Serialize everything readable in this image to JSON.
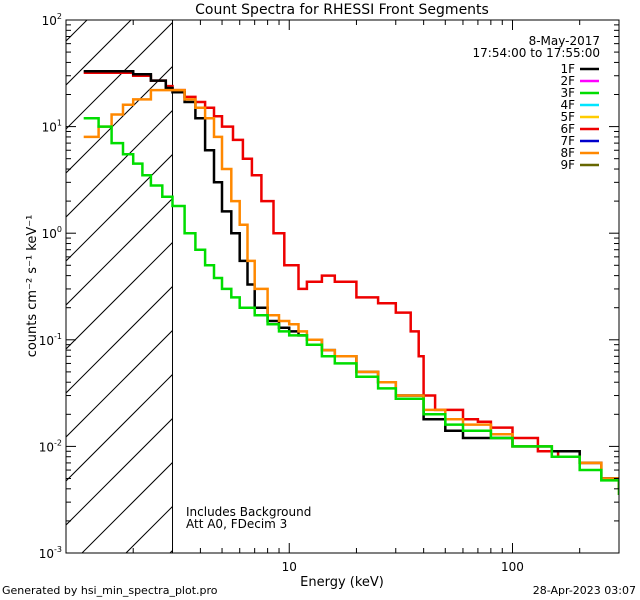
{
  "chart_data": {
    "type": "line",
    "title": "Count Spectra for RHESSI Front Segments",
    "xlabel": "Energy (keV)",
    "ylabel": "counts cm⁻² s⁻¹ keV⁻¹",
    "xscale": "log",
    "yscale": "log",
    "xlim": [
      1,
      300
    ],
    "ylim": [
      0.001,
      100
    ],
    "x_ticks": [
      {
        "value": 10,
        "label": "10"
      },
      {
        "value": 100,
        "label": "100"
      }
    ],
    "y_ticks": [
      {
        "value": 0.001,
        "base": "10",
        "exp": "-3"
      },
      {
        "value": 0.01,
        "base": "10",
        "exp": "-2"
      },
      {
        "value": 0.1,
        "base": "10",
        "exp": "-1"
      },
      {
        "value": 1,
        "base": "10",
        "exp": "0"
      },
      {
        "value": 10,
        "base": "10",
        "exp": "1"
      },
      {
        "value": 100,
        "base": "10",
        "exp": "2"
      }
    ],
    "excluded_region": {
      "x_max": 3.0,
      "style": "hatched"
    },
    "date": "8-May-2017",
    "time_range": "17:54:00 to 17:55:00",
    "annotations": [
      "Includes Background",
      "Att A0, FDecim 3"
    ],
    "legend": [
      {
        "name": "1F",
        "color": "#000000"
      },
      {
        "name": "2F",
        "color": "#ff00ff"
      },
      {
        "name": "3F",
        "color": "#00dd00"
      },
      {
        "name": "4F",
        "color": "#00e5ff"
      },
      {
        "name": "5F",
        "color": "#ffcc00"
      },
      {
        "name": "6F",
        "color": "#ee0000"
      },
      {
        "name": "7F",
        "color": "#0000cc"
      },
      {
        "name": "8F",
        "color": "#ff8800"
      },
      {
        "name": "9F",
        "color": "#666600"
      }
    ],
    "series": [
      {
        "name": "6F",
        "color": "#ee0000",
        "x": [
          1.2,
          1.6,
          2.0,
          2.4,
          2.8,
          3.0,
          3.4,
          3.8,
          4.2,
          4.6,
          5.0,
          5.6,
          6.2,
          6.8,
          7.5,
          8.5,
          9.5,
          11.0,
          12.0,
          14.0,
          16.0,
          20.0,
          25.0,
          30.0,
          35.0,
          38.0,
          40.0,
          45.0,
          50.0,
          60.0,
          70.0,
          80.0,
          100.0,
          130.0,
          160.0,
          200.0,
          250.0,
          300.0
        ],
        "y": [
          32,
          32,
          30,
          27,
          24,
          22,
          19,
          17,
          15,
          12.5,
          10,
          7.5,
          5,
          3.5,
          2.0,
          1.0,
          0.5,
          0.3,
          0.35,
          0.4,
          0.35,
          0.25,
          0.22,
          0.18,
          0.12,
          0.07,
          0.03,
          0.022,
          0.022,
          0.018,
          0.017,
          0.015,
          0.012,
          0.009,
          0.008,
          0.007,
          0.005,
          0.004
        ]
      },
      {
        "name": "1F",
        "color": "#000000",
        "x": [
          1.2,
          1.6,
          2.0,
          2.4,
          2.8,
          3.0,
          3.4,
          3.8,
          4.2,
          4.6,
          5.0,
          5.5,
          6.0,
          6.5,
          7.0,
          8.0,
          9.0,
          10.0,
          11.0,
          12.0,
          14.0,
          16.0,
          20.0,
          25.0,
          30.0,
          40.0,
          50.0,
          60.0,
          80.0,
          100.0,
          150.0,
          200.0,
          250.0,
          300.0
        ],
        "y": [
          33,
          33,
          31,
          27,
          23,
          21,
          17,
          12,
          6,
          3,
          1.6,
          1.0,
          0.55,
          0.33,
          0.2,
          0.15,
          0.13,
          0.12,
          0.11,
          0.1,
          0.08,
          0.07,
          0.05,
          0.04,
          0.03,
          0.018,
          0.014,
          0.012,
          0.012,
          0.01,
          0.009,
          0.007,
          0.005,
          0.004
        ]
      },
      {
        "name": "8F",
        "color": "#ff8800",
        "x": [
          1.2,
          1.4,
          1.6,
          1.8,
          2.0,
          2.4,
          2.8,
          3.0,
          3.4,
          3.8,
          4.2,
          4.6,
          5.0,
          5.5,
          6.0,
          6.5,
          7.0,
          8.0,
          9.0,
          10.0,
          11.0,
          12.0,
          14.0,
          16.0,
          20.0,
          25.0,
          30.0,
          40.0,
          50.0,
          60.0,
          80.0,
          100.0,
          150.0,
          200.0,
          250.0,
          300.0
        ],
        "y": [
          8,
          10,
          13,
          16,
          18,
          22,
          22,
          22,
          18,
          15,
          12,
          8,
          4,
          2,
          1.2,
          0.55,
          0.3,
          0.17,
          0.15,
          0.14,
          0.12,
          0.1,
          0.08,
          0.07,
          0.05,
          0.04,
          0.03,
          0.022,
          0.018,
          0.016,
          0.013,
          0.01,
          0.008,
          0.007,
          0.005,
          0.0035
        ]
      },
      {
        "name": "3F",
        "color": "#00dd00",
        "x": [
          1.2,
          1.4,
          1.6,
          1.8,
          2.0,
          2.2,
          2.4,
          2.7,
          3.0,
          3.4,
          3.8,
          4.2,
          4.6,
          5.0,
          5.5,
          6.0,
          7.0,
          8.0,
          9.0,
          10.0,
          12.0,
          14.0,
          16.0,
          20.0,
          25.0,
          30.0,
          40.0,
          50.0,
          60.0,
          80.0,
          100.0,
          150.0,
          200.0,
          250.0,
          300.0
        ],
        "y": [
          12,
          10,
          7,
          5.5,
          4.5,
          3.5,
          2.8,
          2.2,
          1.8,
          1.0,
          0.7,
          0.5,
          0.38,
          0.3,
          0.25,
          0.2,
          0.17,
          0.14,
          0.12,
          0.11,
          0.09,
          0.07,
          0.06,
          0.045,
          0.035,
          0.028,
          0.02,
          0.016,
          0.014,
          0.012,
          0.01,
          0.008,
          0.006,
          0.0048,
          0.0035
        ]
      }
    ]
  },
  "footer": {
    "left": "Generated by hsi_min_spectra_plot.pro",
    "right": "28-Apr-2023 03:07"
  }
}
